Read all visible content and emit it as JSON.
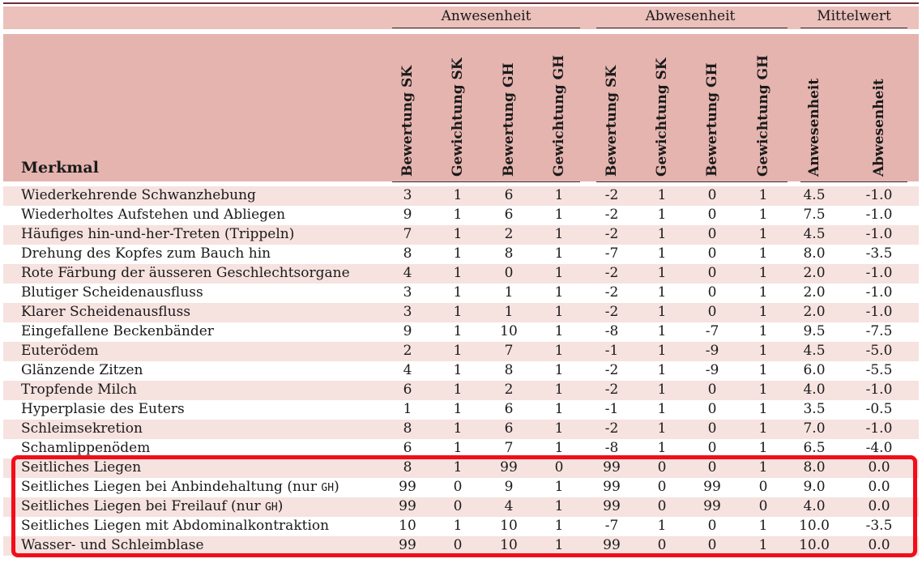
{
  "groups": {
    "anwesenheit": "Anwesenheit",
    "abwesenheit": "Abwesenheit",
    "mittelwert": "Mittelwert"
  },
  "header": {
    "merkmal": "Merkmal",
    "columns": [
      "Bewertung SK",
      "Gewichtung SK",
      "Bewertung GH",
      "Gewichtung GH",
      "Bewertung SK",
      "Gewichtung SK",
      "Bewertung GH",
      "Gewichtung GH",
      "Anwesenheit",
      "Abwesenheit"
    ]
  },
  "rows": [
    {
      "name": "Wiederkehrende Schwanzhebung",
      "v": [
        "3",
        "1",
        "6",
        "1",
        "-2",
        "1",
        "0",
        "1",
        "4.5",
        "-1.0"
      ]
    },
    {
      "name": "Wiederholtes Aufstehen und Abliegen",
      "v": [
        "9",
        "1",
        "6",
        "1",
        "-2",
        "1",
        "0",
        "1",
        "7.5",
        "-1.0"
      ]
    },
    {
      "name": "Häufiges hin-und-her-Treten (Trippeln)",
      "v": [
        "7",
        "1",
        "2",
        "1",
        "-2",
        "1",
        "0",
        "1",
        "4.5",
        "-1.0"
      ]
    },
    {
      "name": "Drehung des Kopfes zum Bauch hin",
      "v": [
        "8",
        "1",
        "8",
        "1",
        "-7",
        "1",
        "0",
        "1",
        "8.0",
        "-3.5"
      ]
    },
    {
      "name": "Rote Färbung der äusseren Geschlechtsorgane",
      "v": [
        "4",
        "1",
        "0",
        "1",
        "-2",
        "1",
        "0",
        "1",
        "2.0",
        "-1.0"
      ]
    },
    {
      "name": "Blutiger Scheidenausfluss",
      "v": [
        "3",
        "1",
        "1",
        "1",
        "-2",
        "1",
        "0",
        "1",
        "2.0",
        "-1.0"
      ]
    },
    {
      "name": "Klarer Scheidenausfluss",
      "v": [
        "3",
        "1",
        "1",
        "1",
        "-2",
        "1",
        "0",
        "1",
        "2.0",
        "-1.0"
      ]
    },
    {
      "name": "Eingefallene Beckenbänder",
      "v": [
        "9",
        "1",
        "10",
        "1",
        "-8",
        "1",
        "-7",
        "1",
        "9.5",
        "-7.5"
      ]
    },
    {
      "name": "Euterödem",
      "v": [
        "2",
        "1",
        "7",
        "1",
        "-1",
        "1",
        "-9",
        "1",
        "4.5",
        "-5.0"
      ]
    },
    {
      "name": "Glänzende Zitzen",
      "v": [
        "4",
        "1",
        "8",
        "1",
        "-2",
        "1",
        "-9",
        "1",
        "6.0",
        "-5.5"
      ]
    },
    {
      "name": "Tropfende Milch",
      "v": [
        "6",
        "1",
        "2",
        "1",
        "-2",
        "1",
        "0",
        "1",
        "4.0",
        "-1.0"
      ]
    },
    {
      "name": "Hyperplasie des Euters",
      "v": [
        "1",
        "1",
        "6",
        "1",
        "-1",
        "1",
        "0",
        "1",
        "3.5",
        "-0.5"
      ]
    },
    {
      "name": "Schleimsekretion",
      "v": [
        "8",
        "1",
        "6",
        "1",
        "-2",
        "1",
        "0",
        "1",
        "7.0",
        "-1.0"
      ]
    },
    {
      "name": "Schamlippenödem",
      "v": [
        "6",
        "1",
        "7",
        "1",
        "-8",
        "1",
        "0",
        "1",
        "6.5",
        "-4.0"
      ]
    },
    {
      "name": "Seitliches Liegen",
      "v": [
        "8",
        "1",
        "99",
        "0",
        "99",
        "0",
        "0",
        "1",
        "8.0",
        "0.0"
      ]
    },
    {
      "name": "Seitliches Liegen bei Anbindehaltung (nur ",
      "gh": "GH",
      "tail": ")",
      "v": [
        "99",
        "0",
        "9",
        "1",
        "99",
        "0",
        "99",
        "0",
        "9.0",
        "0.0"
      ]
    },
    {
      "name": "Seitliches Liegen bei Freilauf (nur ",
      "gh": "GH",
      "tail": ")",
      "v": [
        "99",
        "0",
        "4",
        "1",
        "99",
        "0",
        "99",
        "0",
        "4.0",
        "0.0"
      ]
    },
    {
      "name": "Seitliches Liegen mit Abdominalkontraktion",
      "v": [
        "10",
        "1",
        "10",
        "1",
        "-7",
        "1",
        "0",
        "1",
        "10.0",
        "-3.5"
      ]
    },
    {
      "name": "Wasser- und Schleimblase",
      "v": [
        "99",
        "0",
        "10",
        "1",
        "99",
        "0",
        "0",
        "1",
        "10.0",
        "0.0"
      ]
    }
  ],
  "colors": {
    "header_band": "#e5b4af",
    "row_shade": "#f6e2df",
    "highlight": "#f20d1a"
  }
}
